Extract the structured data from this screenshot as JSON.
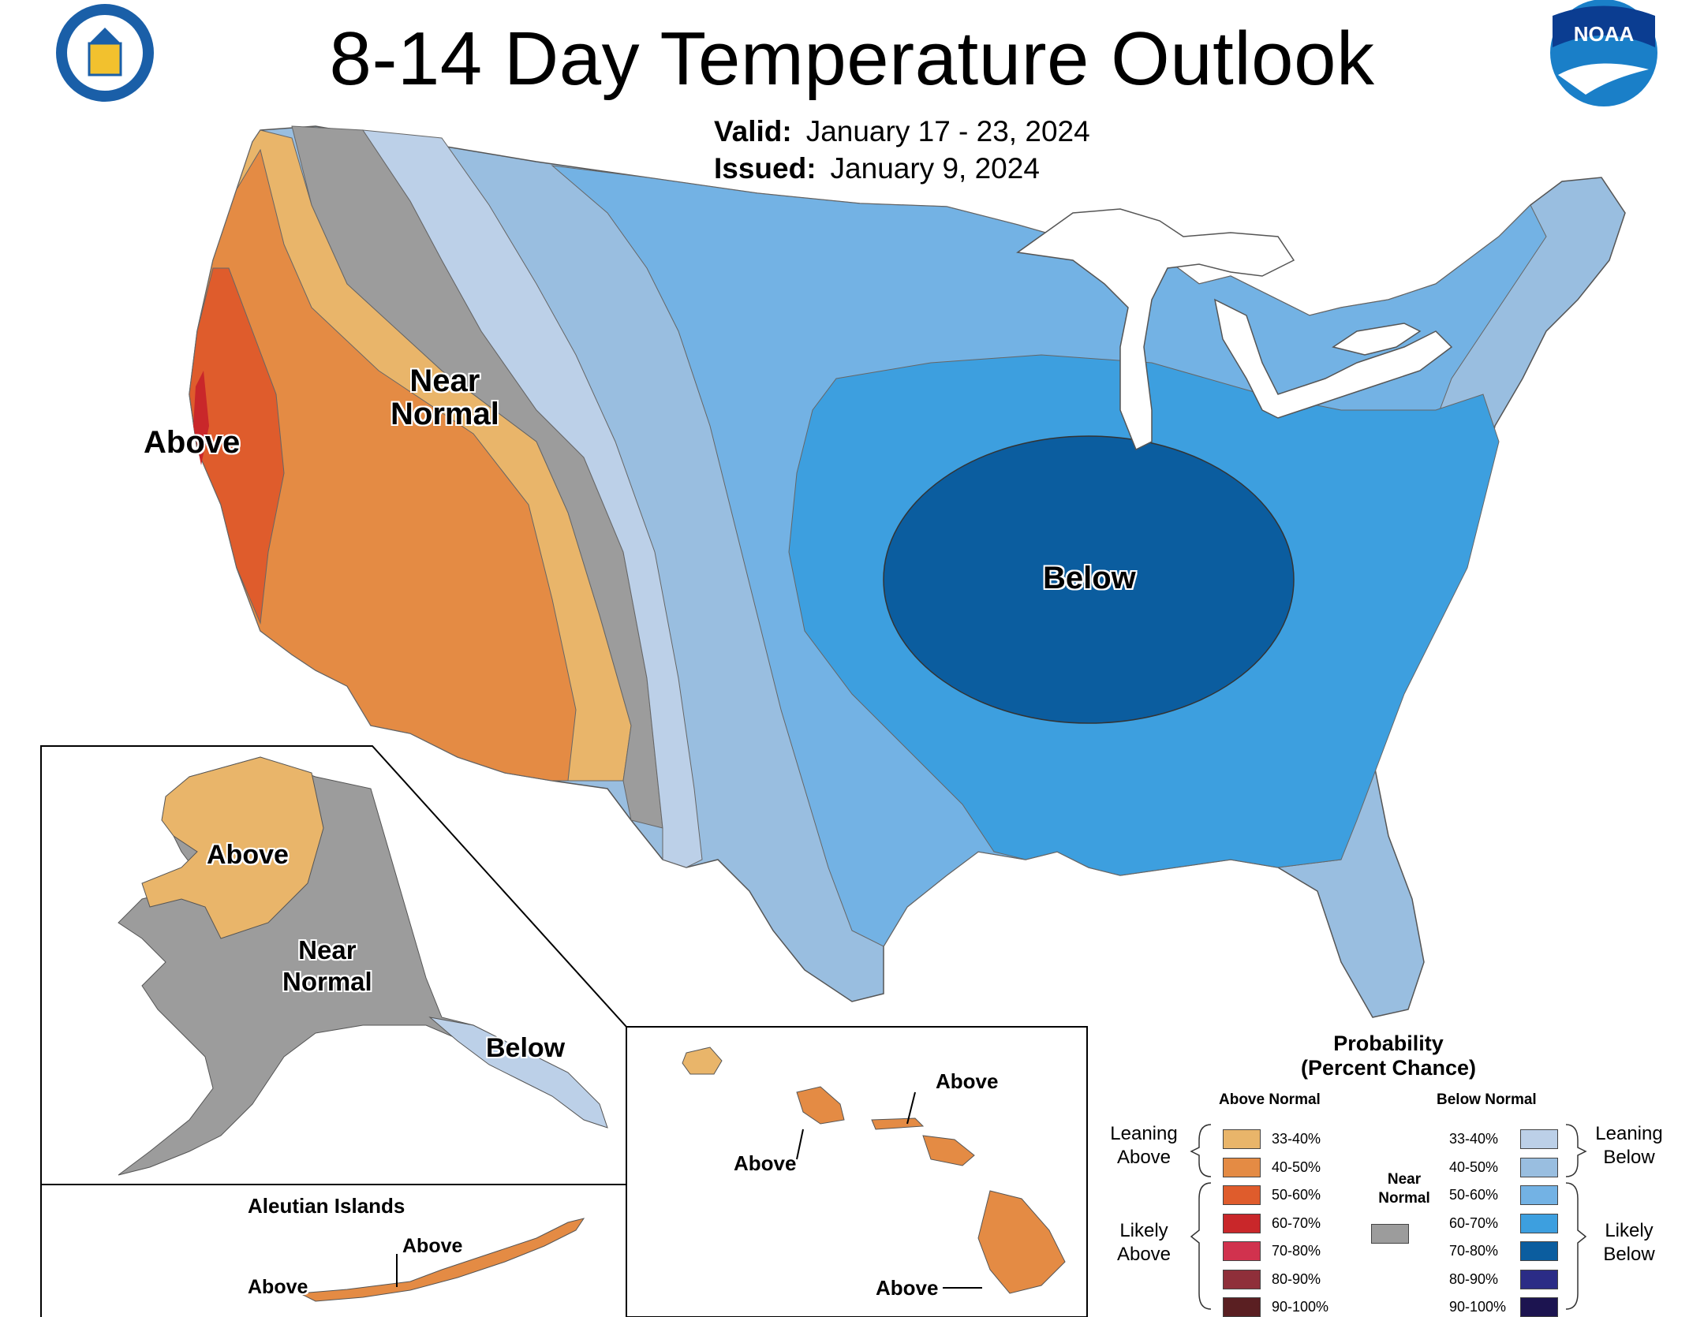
{
  "title": "8-14 Day Temperature Outlook",
  "valid": {
    "label": "Valid:",
    "value": "January 17 - 23, 2024"
  },
  "issued": {
    "label": "Issued:",
    "value": "January 9, 2024"
  },
  "logos": {
    "left": "department-of-commerce-seal",
    "right": "noaa-logo",
    "noaa_text": "NOAA"
  },
  "conus_labels": {
    "above": "Above",
    "near_normal_1": "Near",
    "near_normal_2": "Normal",
    "below": "Below"
  },
  "alaska_labels": {
    "above": "Above",
    "near_normal_1": "Near",
    "near_normal_2": "Normal",
    "below": "Below"
  },
  "aleutian": {
    "title": "Aleutian Islands",
    "label1": "Above",
    "label2": "Above"
  },
  "hawaii_labels": {
    "label1": "Above",
    "label2": "Above",
    "label3": "Above"
  },
  "legend": {
    "title1": "Probability",
    "title2": "(Percent Chance)",
    "above_header": "Above Normal",
    "below_header": "Below Normal",
    "near_normal_1": "Near",
    "near_normal_2": "Normal",
    "leaning_above_1": "Leaning",
    "leaning_above_2": "Above",
    "likely_above_1": "Likely",
    "likely_above_2": "Above",
    "leaning_below_1": "Leaning",
    "leaning_below_2": "Below",
    "likely_below_1": "Likely",
    "likely_below_2": "Below",
    "ranges": [
      "33-40%",
      "40-50%",
      "50-60%",
      "60-70%",
      "70-80%",
      "80-90%",
      "90-100%"
    ],
    "above_colors": [
      "#e9b56a",
      "#e48b44",
      "#df5c2c",
      "#c9272a",
      "#d1324e",
      "#8f2f3a",
      "#5a1f22"
    ],
    "below_colors": [
      "#bcd0e8",
      "#99bee0",
      "#73b2e4",
      "#3d9fdf",
      "#0b5d9f",
      "#2b2c86",
      "#1c1450"
    ],
    "near_normal_color": "#9c9c9c"
  }
}
